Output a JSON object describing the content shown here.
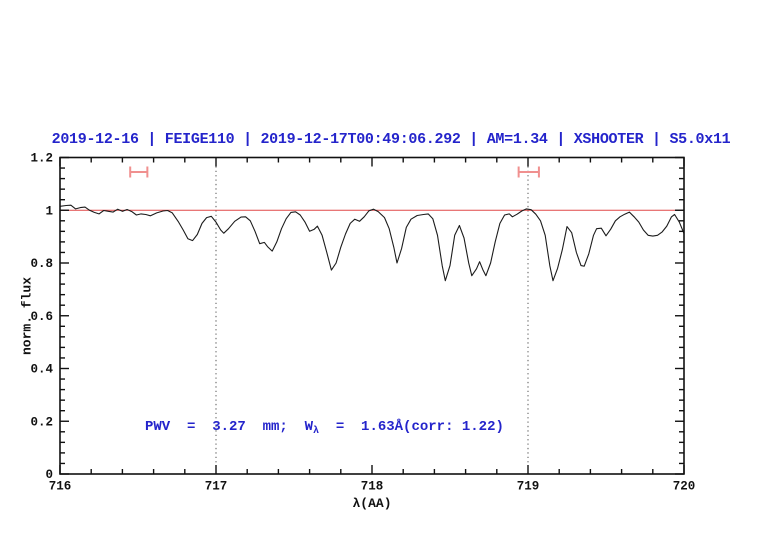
{
  "title": {
    "text": "2019-12-16 | FEIGE110 | 2019-12-17T00:49:06.292 | AM=1.34 | XSHOOTER | S5.0x11",
    "color": "#2424cb"
  },
  "annotation": {
    "prefix": "PWV  =  3.27  mm;  W",
    "subscript": "λ",
    "suffix": "  =  1.63Å(corr: 1.22)",
    "color": "#2424cb"
  },
  "chart_data": {
    "type": "line",
    "title": "2019-12-16 | FEIGE110 | 2019-12-17T00:49:06.292 | AM=1.34 | XSHOOTER | S5.0x11",
    "xlabel": "λ(AA)",
    "ylabel": "norm. flux",
    "xlim": [
      716,
      720
    ],
    "ylim": [
      0,
      1.2
    ],
    "grid": "off",
    "legend": "none",
    "x_tick_labels": [
      "716",
      "717",
      "718",
      "719",
      "720"
    ],
    "x_major_step": 1,
    "x_minor_step": 0.2,
    "y_tick_labels": [
      "0",
      "0.2",
      "0.4",
      "0.6",
      "0.8",
      "1",
      "1.2"
    ],
    "y_major_step": 0.2,
    "y_minor_step": 0.04,
    "axis_color": "#111111",
    "continuum_line": {
      "y": 1.0,
      "color": "#e04848"
    },
    "vlines": [
      {
        "x": 717,
        "style": "dotted",
        "color": "#555555"
      },
      {
        "x": 719,
        "style": "dotted",
        "color": "#555555"
      }
    ],
    "range_markers": [
      {
        "x1": 716.45,
        "x2": 716.56,
        "y": 1.145,
        "color": "#f0908f"
      },
      {
        "x1": 718.94,
        "x2": 719.07,
        "y": 1.145,
        "color": "#f0908f"
      }
    ],
    "series": [
      {
        "name": "spectrum",
        "color": "#1c1c1c",
        "points": [
          [
            716.0,
            1.015
          ],
          [
            716.04,
            1.018
          ],
          [
            716.07,
            1.019
          ],
          [
            716.1,
            1.005
          ],
          [
            716.13,
            1.01
          ],
          [
            716.16,
            1.012
          ],
          [
            716.19,
            1.0
          ],
          [
            716.22,
            0.992
          ],
          [
            716.25,
            0.986
          ],
          [
            716.28,
            0.999
          ],
          [
            716.31,
            0.996
          ],
          [
            716.34,
            0.993
          ],
          [
            716.37,
            1.004
          ],
          [
            716.4,
            0.996
          ],
          [
            716.43,
            1.003
          ],
          [
            716.46,
            0.995
          ],
          [
            716.49,
            0.982
          ],
          [
            716.52,
            0.986
          ],
          [
            716.55,
            0.984
          ],
          [
            716.58,
            0.979
          ],
          [
            716.62,
            0.99
          ],
          [
            716.66,
            0.997
          ],
          [
            716.69,
            0.999
          ],
          [
            716.72,
            0.99
          ],
          [
            716.76,
            0.955
          ],
          [
            716.79,
            0.925
          ],
          [
            716.82,
            0.892
          ],
          [
            716.85,
            0.885
          ],
          [
            716.88,
            0.908
          ],
          [
            716.91,
            0.95
          ],
          [
            716.94,
            0.972
          ],
          [
            716.97,
            0.977
          ],
          [
            717.0,
            0.955
          ],
          [
            717.03,
            0.925
          ],
          [
            717.05,
            0.913
          ],
          [
            717.08,
            0.93
          ],
          [
            717.12,
            0.958
          ],
          [
            717.16,
            0.974
          ],
          [
            717.19,
            0.975
          ],
          [
            717.22,
            0.96
          ],
          [
            717.25,
            0.92
          ],
          [
            717.28,
            0.873
          ],
          [
            717.31,
            0.878
          ],
          [
            717.33,
            0.862
          ],
          [
            717.36,
            0.845
          ],
          [
            717.39,
            0.88
          ],
          [
            717.42,
            0.93
          ],
          [
            717.45,
            0.968
          ],
          [
            717.48,
            0.992
          ],
          [
            717.51,
            0.994
          ],
          [
            717.54,
            0.982
          ],
          [
            717.57,
            0.956
          ],
          [
            717.6,
            0.92
          ],
          [
            717.63,
            0.928
          ],
          [
            717.65,
            0.94
          ],
          [
            717.68,
            0.905
          ],
          [
            717.71,
            0.84
          ],
          [
            717.74,
            0.773
          ],
          [
            717.77,
            0.8
          ],
          [
            717.8,
            0.86
          ],
          [
            717.83,
            0.91
          ],
          [
            717.86,
            0.95
          ],
          [
            717.89,
            0.966
          ],
          [
            717.92,
            0.958
          ],
          [
            717.95,
            0.975
          ],
          [
            717.98,
            0.998
          ],
          [
            718.01,
            1.004
          ],
          [
            718.04,
            0.995
          ],
          [
            718.08,
            0.972
          ],
          [
            718.11,
            0.93
          ],
          [
            718.14,
            0.86
          ],
          [
            718.16,
            0.8
          ],
          [
            718.19,
            0.855
          ],
          [
            718.22,
            0.935
          ],
          [
            718.25,
            0.966
          ],
          [
            718.29,
            0.98
          ],
          [
            718.33,
            0.984
          ],
          [
            718.36,
            0.986
          ],
          [
            718.39,
            0.968
          ],
          [
            718.42,
            0.905
          ],
          [
            718.45,
            0.79
          ],
          [
            718.47,
            0.733
          ],
          [
            718.5,
            0.79
          ],
          [
            718.53,
            0.905
          ],
          [
            718.56,
            0.942
          ],
          [
            718.59,
            0.895
          ],
          [
            718.62,
            0.8
          ],
          [
            718.64,
            0.752
          ],
          [
            718.67,
            0.778
          ],
          [
            718.69,
            0.805
          ],
          [
            718.71,
            0.775
          ],
          [
            718.73,
            0.752
          ],
          [
            718.76,
            0.8
          ],
          [
            718.79,
            0.88
          ],
          [
            718.82,
            0.95
          ],
          [
            718.85,
            0.982
          ],
          [
            718.88,
            0.986
          ],
          [
            718.9,
            0.975
          ],
          [
            718.93,
            0.985
          ],
          [
            718.96,
            0.997
          ],
          [
            718.99,
            1.005
          ],
          [
            719.02,
            1.002
          ],
          [
            719.05,
            0.985
          ],
          [
            719.08,
            0.96
          ],
          [
            719.11,
            0.905
          ],
          [
            719.14,
            0.79
          ],
          [
            719.16,
            0.733
          ],
          [
            719.19,
            0.78
          ],
          [
            719.22,
            0.85
          ],
          [
            719.25,
            0.938
          ],
          [
            719.28,
            0.915
          ],
          [
            719.31,
            0.84
          ],
          [
            719.34,
            0.79
          ],
          [
            719.36,
            0.788
          ],
          [
            719.39,
            0.835
          ],
          [
            719.42,
            0.905
          ],
          [
            719.44,
            0.93
          ],
          [
            719.47,
            0.932
          ],
          [
            719.5,
            0.903
          ],
          [
            719.53,
            0.928
          ],
          [
            719.56,
            0.96
          ],
          [
            719.59,
            0.975
          ],
          [
            719.62,
            0.985
          ],
          [
            719.65,
            0.993
          ],
          [
            719.68,
            0.975
          ],
          [
            719.71,
            0.955
          ],
          [
            719.74,
            0.925
          ],
          [
            719.77,
            0.905
          ],
          [
            719.8,
            0.902
          ],
          [
            719.83,
            0.905
          ],
          [
            719.86,
            0.918
          ],
          [
            719.89,
            0.94
          ],
          [
            719.92,
            0.975
          ],
          [
            719.94,
            0.984
          ],
          [
            719.97,
            0.955
          ],
          [
            720.0,
            0.912
          ]
        ]
      }
    ]
  }
}
